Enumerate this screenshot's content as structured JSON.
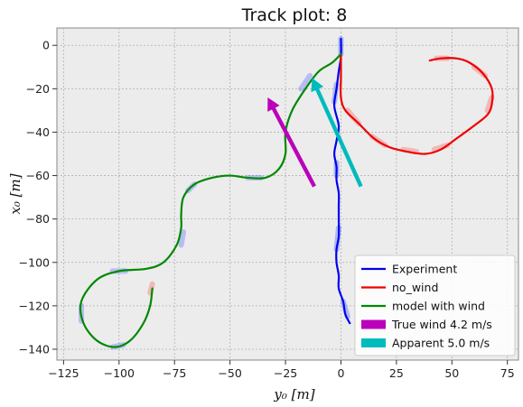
{
  "chart_data": {
    "type": "line",
    "title": "Track plot: 8",
    "xlabel": "y₀ [m]",
    "ylabel": "x₀ [m]",
    "xlim": [
      -128,
      80
    ],
    "ylim": [
      -145,
      8
    ],
    "xticks": [
      -125,
      -100,
      -75,
      -50,
      -25,
      0,
      25,
      50,
      75
    ],
    "yticks": [
      0,
      -20,
      -40,
      -60,
      -80,
      -100,
      -120,
      -140
    ],
    "xtick_labels": [
      "−125",
      "−100",
      "−75",
      "−50",
      "−25",
      "0",
      "25",
      "50",
      "75"
    ],
    "ytick_labels": [
      "0",
      "−20",
      "−40",
      "−60",
      "−80",
      "−100",
      "−120",
      "−140"
    ],
    "grid": true,
    "legend_position": "lower-right",
    "series": [
      {
        "name": "Experiment",
        "color": "#0000ee",
        "points": [
          [
            0,
            3
          ],
          [
            0,
            -5
          ],
          [
            -1,
            -12
          ],
          [
            -2,
            -20
          ],
          [
            -3,
            -28
          ],
          [
            -1,
            -37
          ],
          [
            -2,
            -44
          ],
          [
            -3,
            -50
          ],
          [
            -2,
            -56
          ],
          [
            -2,
            -62
          ],
          [
            -1,
            -68
          ],
          [
            -1,
            -74
          ],
          [
            -1,
            -80
          ],
          [
            -1,
            -88
          ],
          [
            -2,
            -94
          ],
          [
            -2,
            -100
          ],
          [
            -1,
            -106
          ],
          [
            -1,
            -112
          ],
          [
            1,
            -118
          ],
          [
            2,
            -124
          ],
          [
            4,
            -128
          ]
        ]
      },
      {
        "name": "no_wind",
        "color": "#ee0000",
        "points": [
          [
            0,
            -4
          ],
          [
            0,
            -14
          ],
          [
            0,
            -24
          ],
          [
            2,
            -30
          ],
          [
            8,
            -36
          ],
          [
            15,
            -43
          ],
          [
            22,
            -47
          ],
          [
            30,
            -49
          ],
          [
            38,
            -50
          ],
          [
            45,
            -48
          ],
          [
            52,
            -43
          ],
          [
            60,
            -37
          ],
          [
            66,
            -32
          ],
          [
            68,
            -27
          ],
          [
            68,
            -20
          ],
          [
            64,
            -13
          ],
          [
            58,
            -8
          ],
          [
            52,
            -6
          ],
          [
            45,
            -6
          ],
          [
            40,
            -7
          ]
        ]
      },
      {
        "name": "model with wind",
        "color": "#008800",
        "points": [
          [
            0,
            -4
          ],
          [
            -4,
            -8
          ],
          [
            -10,
            -12
          ],
          [
            -16,
            -20
          ],
          [
            -22,
            -30
          ],
          [
            -25,
            -40
          ],
          [
            -25,
            -50
          ],
          [
            -28,
            -57
          ],
          [
            -34,
            -61
          ],
          [
            -42,
            -61
          ],
          [
            -50,
            -60
          ],
          [
            -58,
            -61
          ],
          [
            -66,
            -64
          ],
          [
            -71,
            -70
          ],
          [
            -72,
            -78
          ],
          [
            -72,
            -84
          ],
          [
            -74,
            -92
          ],
          [
            -80,
            -100
          ],
          [
            -88,
            -103
          ],
          [
            -100,
            -104
          ],
          [
            -110,
            -108
          ],
          [
            -117,
            -118
          ],
          [
            -116,
            -128
          ],
          [
            -110,
            -136
          ],
          [
            -102,
            -139
          ],
          [
            -95,
            -136
          ],
          [
            -89,
            -128
          ],
          [
            -86,
            -120
          ],
          [
            -85,
            -112
          ]
        ]
      }
    ],
    "arrows": [
      {
        "name": "True wind 4.2 m/s",
        "color": "#bb00bb",
        "from": [
          -12,
          -65
        ],
        "to": [
          -33,
          -24
        ]
      },
      {
        "name": "Apparent 5.0 m/s",
        "color": "#00bbbb",
        "from": [
          9,
          -65
        ],
        "to": [
          -13,
          -15
        ]
      }
    ],
    "highlight_segments": [
      {
        "color": "#3355ff",
        "points": [
          [
            0,
            3
          ],
          [
            0,
            -4
          ]
        ]
      },
      {
        "color": "#3355ff",
        "points": [
          [
            -2,
            -18
          ],
          [
            -3,
            -26
          ]
        ]
      },
      {
        "color": "#3355ff",
        "points": [
          [
            -2,
            -54
          ],
          [
            -2,
            -60
          ]
        ]
      },
      {
        "color": "#3355ff",
        "points": [
          [
            -1,
            -84
          ],
          [
            -2,
            -94
          ]
        ]
      },
      {
        "color": "#3355ff",
        "points": [
          [
            1,
            -118
          ],
          [
            3,
            -125
          ]
        ]
      },
      {
        "color": "#ff5555",
        "points": [
          [
            3,
            -30
          ],
          [
            8,
            -36
          ]
        ]
      },
      {
        "color": "#ff5555",
        "points": [
          [
            14,
            -42
          ],
          [
            20,
            -46
          ]
        ]
      },
      {
        "color": "#ff5555",
        "points": [
          [
            28,
            -48
          ],
          [
            34,
            -49
          ]
        ]
      },
      {
        "color": "#ff5555",
        "points": [
          [
            42,
            -48
          ],
          [
            48,
            -46
          ]
        ]
      },
      {
        "color": "#ff5555",
        "points": [
          [
            66,
            -30
          ],
          [
            68,
            -24
          ]
        ]
      },
      {
        "color": "#ff5555",
        "points": [
          [
            60,
            -10
          ],
          [
            65,
            -14
          ]
        ]
      },
      {
        "color": "#ff5555",
        "points": [
          [
            43,
            -6
          ],
          [
            48,
            -6
          ]
        ]
      },
      {
        "color": "#ff5555",
        "points": [
          [
            -85,
            -110
          ],
          [
            -86,
            -114
          ]
        ]
      },
      {
        "color": "#5566ff",
        "points": [
          [
            -14,
            -14
          ],
          [
            -18,
            -20
          ]
        ]
      },
      {
        "color": "#5566ff",
        "points": [
          [
            -36,
            -61
          ],
          [
            -42,
            -61
          ]
        ]
      },
      {
        "color": "#5566ff",
        "points": [
          [
            -66,
            -64
          ],
          [
            -69,
            -67
          ]
        ]
      },
      {
        "color": "#5566ff",
        "points": [
          [
            -71,
            -86
          ],
          [
            -72,
            -92
          ]
        ]
      },
      {
        "color": "#5566ff",
        "points": [
          [
            -97,
            -104
          ],
          [
            -103,
            -104
          ]
        ]
      },
      {
        "color": "#5566ff",
        "points": [
          [
            -117,
            -120
          ],
          [
            -117,
            -127
          ]
        ]
      },
      {
        "color": "#5566ff",
        "points": [
          [
            -98,
            -138
          ],
          [
            -103,
            -139
          ]
        ]
      }
    ],
    "legend": [
      {
        "label": "Experiment",
        "kind": "line",
        "color": "#0000ee"
      },
      {
        "label": "no_wind",
        "kind": "line",
        "color": "#ee0000"
      },
      {
        "label": "model with wind",
        "kind": "line",
        "color": "#008800"
      },
      {
        "label": "True wind 4.2 m/s",
        "kind": "patch",
        "color": "#bb00bb"
      },
      {
        "label": "Apparent 5.0 m/s",
        "kind": "patch",
        "color": "#00bbbb"
      }
    ]
  }
}
